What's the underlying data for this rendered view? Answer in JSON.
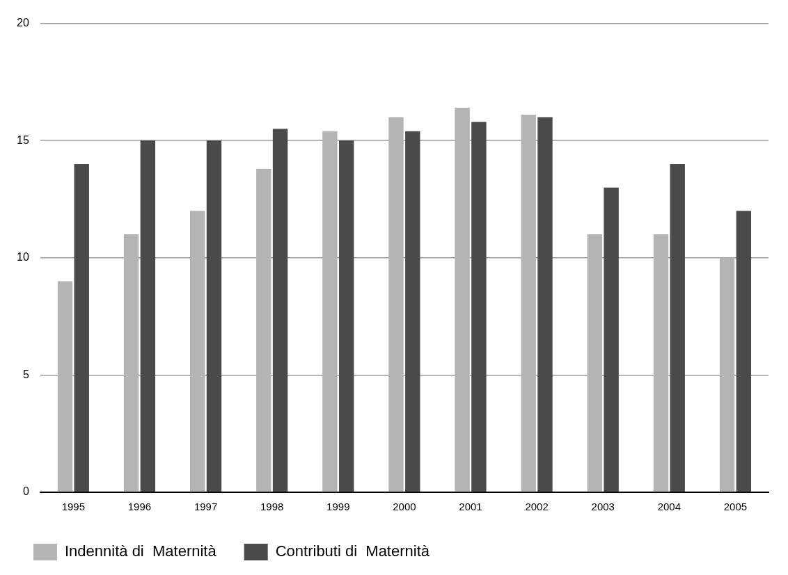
{
  "chart_data": {
    "type": "bar",
    "categories": [
      "1995",
      "1996",
      "1997",
      "1998",
      "1999",
      "2000",
      "2001",
      "2002",
      "2003",
      "2004",
      "2005"
    ],
    "series": [
      {
        "name": "Indennità di  Maternità",
        "color": "#b4b4b4",
        "values": [
          9,
          11,
          12,
          13.8,
          15.4,
          16,
          16.4,
          16.1,
          11,
          11,
          10
        ]
      },
      {
        "name": "Contributi di  Maternità",
        "color": "#4a4a4a",
        "values": [
          14,
          15,
          15,
          15.5,
          15,
          15.4,
          15.8,
          16,
          13,
          14,
          12
        ]
      }
    ],
    "ylim": [
      0,
      20
    ],
    "yticks": [
      0,
      5,
      10,
      15,
      20
    ],
    "grid": "y",
    "legend": "bottom"
  }
}
